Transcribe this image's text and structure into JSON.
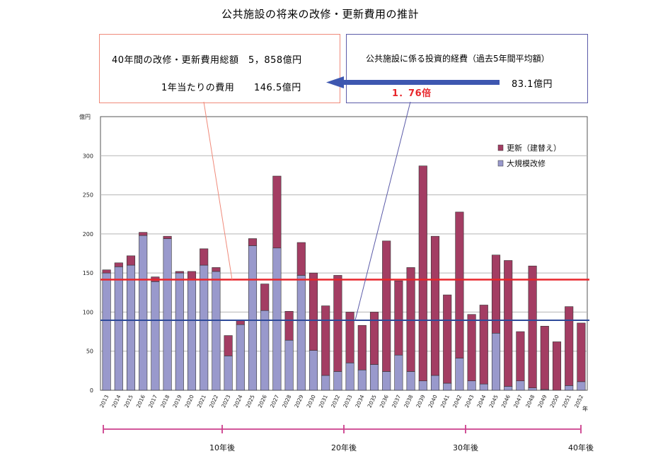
{
  "chart_data": {
    "type": "bar",
    "title": "公共施設の将来の改修・更新費用の推計",
    "ylabel": "億円",
    "xunit": "年",
    "ylim": [
      0,
      350
    ],
    "yticks": [
      0,
      50,
      100,
      150,
      200,
      250,
      300
    ],
    "grid": true,
    "legend_position": "top-right",
    "categories": [
      "2013",
      "2014",
      "2015",
      "2016",
      "2017",
      "2018",
      "2019",
      "2020",
      "2021",
      "2022",
      "2023",
      "2024",
      "2025",
      "2026",
      "2027",
      "2028",
      "2029",
      "2030",
      "2031",
      "2032",
      "2033",
      "2034",
      "2035",
      "2036",
      "2037",
      "2038",
      "2039",
      "2040",
      "2041",
      "2042",
      "2043",
      "2044",
      "2045",
      "2046",
      "2047",
      "2048",
      "2049",
      "2050",
      "2051",
      "2052"
    ],
    "series": [
      {
        "name": "大規模改修",
        "color": "#9999cc",
        "values": [
          150,
          158,
          160,
          198,
          139,
          194,
          150,
          141,
          160,
          152,
          44,
          84,
          185,
          102,
          182,
          64,
          147,
          51,
          19,
          24,
          35,
          26,
          33,
          24,
          45,
          24,
          12,
          19,
          9,
          41,
          12,
          8,
          73,
          5,
          12,
          3,
          1,
          0,
          6,
          11
        ]
      },
      {
        "name": "更新（建替え）",
        "color": "#a33d63",
        "values": [
          4,
          5,
          12,
          4,
          6,
          3,
          2,
          11,
          21,
          5,
          26,
          6,
          9,
          34,
          92,
          37,
          42,
          99,
          89,
          123,
          65,
          57,
          67,
          167,
          95,
          133,
          275,
          178,
          113,
          187,
          85,
          101,
          100,
          161,
          63,
          156,
          81,
          62,
          101,
          75
        ]
      }
    ],
    "reference_lines": [
      {
        "value": 141.5,
        "color": "#e8262b"
      },
      {
        "value": 89.5,
        "color": "#2e4a9a"
      }
    ],
    "timeline": {
      "labels": [
        "10年後",
        "20年後",
        "30年後",
        "40年後"
      ],
      "color": "#cc3f8c"
    },
    "callouts": {
      "left_line1": "40年間の改修・更新費用総額　5，858億円",
      "left_line2_label": "1年当たりの費用",
      "left_line2_value": "146.5億円",
      "right_line1": "公共施設に係る投資的経費（過去5年間平均額）",
      "right_line2": "83.1億円",
      "ratio": "1．76倍"
    }
  }
}
